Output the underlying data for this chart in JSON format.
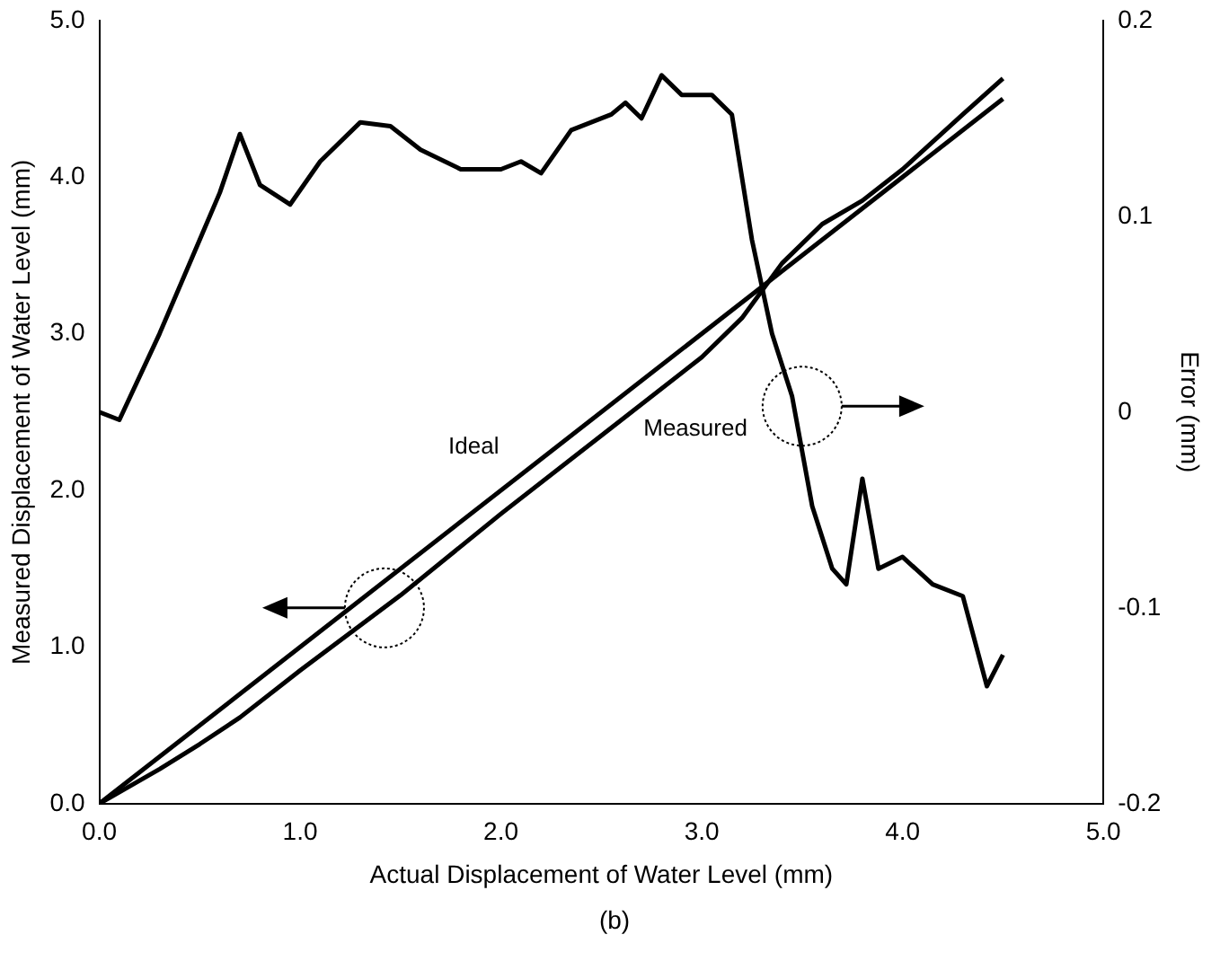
{
  "chart_data": {
    "type": "line",
    "xlabel": "Actual Displacement of Water Level (mm)",
    "ylabel": "Measured Displacement of Water Level (mm)",
    "y2label": "Error (mm)",
    "xlim": [
      0,
      5
    ],
    "xticks": [
      {
        "value": 0,
        "label": "0.0"
      },
      {
        "value": 1,
        "label": "1.0"
      },
      {
        "value": 2,
        "label": "2.0"
      },
      {
        "value": 3,
        "label": "3.0"
      },
      {
        "value": 4,
        "label": "4.0"
      },
      {
        "value": 5,
        "label": "5.0"
      }
    ],
    "ylim": [
      0,
      5
    ],
    "yticks": [
      {
        "value": 0,
        "label": "0.0"
      },
      {
        "value": 1,
        "label": "1.0"
      },
      {
        "value": 2,
        "label": "2.0"
      },
      {
        "value": 3,
        "label": "3.0"
      },
      {
        "value": 4,
        "label": "4.0"
      },
      {
        "value": 5,
        "label": "5.0"
      }
    ],
    "y2lim": [
      -0.2,
      0.2
    ],
    "y2ticks": [
      -0.2,
      -0.1,
      0,
      0.1,
      0.2
    ],
    "series": [
      {
        "name": "Ideal",
        "color": "#000000",
        "x": [
          0,
          4.5
        ],
        "values": [
          0,
          4.5
        ]
      },
      {
        "name": "Measured",
        "color": "#000000",
        "x": [
          0,
          0.3,
          0.5,
          0.7,
          1.0,
          1.5,
          2.0,
          2.5,
          3.0,
          3.2,
          3.4,
          3.6,
          3.8,
          4.0,
          4.3,
          4.5
        ],
        "values": [
          0,
          0.22,
          0.38,
          0.55,
          0.85,
          1.33,
          1.85,
          2.35,
          2.85,
          3.1,
          3.45,
          3.7,
          3.85,
          4.05,
          4.4,
          4.63
        ]
      },
      {
        "color": "#000000",
        "axis": "y2",
        "x": [
          0,
          0.1,
          0.3,
          0.5,
          0.6,
          0.7,
          0.8,
          0.95,
          1.1,
          1.3,
          1.45,
          1.6,
          1.8,
          2.0,
          2.1,
          2.2,
          2.35,
          2.55,
          2.62,
          2.7,
          2.8,
          2.9,
          3.05,
          3.15,
          3.25,
          3.35,
          3.45,
          3.55,
          3.65,
          3.72,
          3.8,
          3.88,
          4.0,
          4.15,
          4.3,
          4.42,
          4.5
        ],
        "values": [
          0,
          -0.004,
          0.04,
          0.088,
          0.112,
          0.142,
          0.116,
          0.106,
          0.128,
          0.148,
          0.146,
          0.134,
          0.124,
          0.124,
          0.128,
          0.122,
          0.144,
          0.152,
          0.158,
          0.15,
          0.172,
          0.162,
          0.162,
          0.152,
          0.088,
          0.04,
          0.008,
          -0.048,
          -0.08,
          -0.088,
          -0.034,
          -0.08,
          -0.074,
          -0.088,
          -0.094,
          -0.14,
          -0.124
        ]
      }
    ],
    "annotations": [
      "(b)"
    ],
    "grid": false,
    "legend": false,
    "marker": "none",
    "line_style": "solid"
  }
}
